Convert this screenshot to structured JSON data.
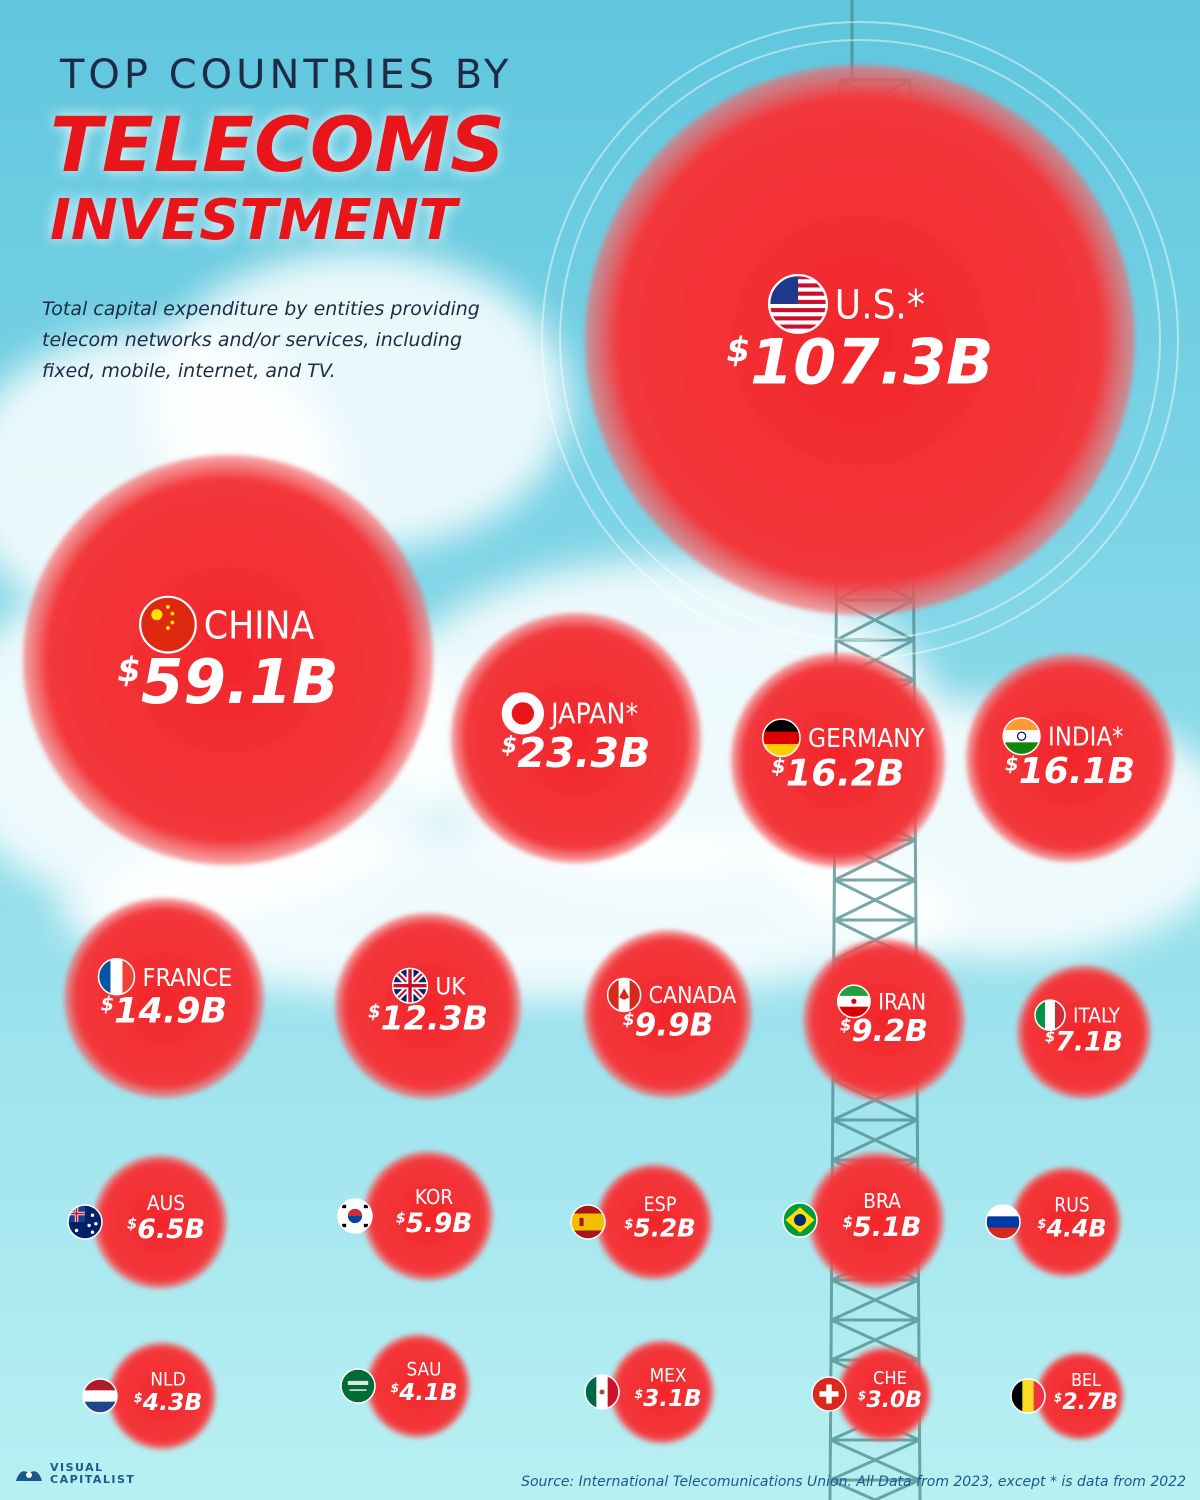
{
  "header": {
    "title_line1": "TOP COUNTRIES BY",
    "title_line2": "TELECOMS",
    "title_line3": "INVESTMENT",
    "subtitle": "Total capital expenditure by entities providing telecom networks and/or services, including fixed, mobile, internet, and TV."
  },
  "colors": {
    "bubble": "#f2262a",
    "bubble_edge": "#f56a6c",
    "title_red": "#e8161b"
  },
  "chart_data": {
    "type": "bubble",
    "unit": "$B",
    "items": [
      {
        "label": "U.S.*",
        "value": 107.3,
        "value_label": "107.3B",
        "flag": "us-flag-icon"
      },
      {
        "label": "CHINA",
        "value": 59.1,
        "value_label": "59.1B",
        "flag": "china-flag-icon"
      },
      {
        "label": "JAPAN*",
        "value": 23.3,
        "value_label": "23.3B",
        "flag": "japan-flag-icon"
      },
      {
        "label": "GERMANY",
        "value": 16.2,
        "value_label": "16.2B",
        "flag": "germany-flag-icon"
      },
      {
        "label": "INDIA*",
        "value": 16.1,
        "value_label": "16.1B",
        "flag": "india-flag-icon"
      },
      {
        "label": "FRANCE",
        "value": 14.9,
        "value_label": "14.9B",
        "flag": "france-flag-icon"
      },
      {
        "label": "UK",
        "value": 12.3,
        "value_label": "12.3B",
        "flag": "uk-flag-icon"
      },
      {
        "label": "CANADA",
        "value": 9.9,
        "value_label": "9.9B",
        "flag": "canada-flag-icon"
      },
      {
        "label": "IRAN",
        "value": 9.2,
        "value_label": "9.2B",
        "flag": "iran-flag-icon"
      },
      {
        "label": "ITALY",
        "value": 7.1,
        "value_label": "7.1B",
        "flag": "italy-flag-icon"
      },
      {
        "label": "AUS",
        "value": 6.5,
        "value_label": "6.5B",
        "flag": "australia-flag-icon"
      },
      {
        "label": "KOR",
        "value": 5.9,
        "value_label": "5.9B",
        "flag": "korea-flag-icon"
      },
      {
        "label": "ESP",
        "value": 5.2,
        "value_label": "5.2B",
        "flag": "spain-flag-icon"
      },
      {
        "label": "BRA",
        "value": 5.1,
        "value_label": "5.1B",
        "flag": "brazil-flag-icon"
      },
      {
        "label": "RUS",
        "value": 4.4,
        "value_label": "4.4B",
        "flag": "russia-flag-icon"
      },
      {
        "label": "NLD",
        "value": 4.3,
        "value_label": "4.3B",
        "flag": "netherlands-flag-icon"
      },
      {
        "label": "SAU",
        "value": 4.1,
        "value_label": "4.1B",
        "flag": "saudi-flag-icon"
      },
      {
        "label": "MEX",
        "value": 3.1,
        "value_label": "3.1B",
        "flag": "mexico-flag-icon"
      },
      {
        "label": "CHE",
        "value": 3.0,
        "value_label": "3.0B",
        "flag": "switzerland-flag-icon"
      },
      {
        "label": "BEL",
        "value": 2.7,
        "value_label": "2.7B",
        "flag": "belgium-flag-icon"
      }
    ]
  },
  "footer": {
    "source": "Source: International Telecomunications Union. All Data from 2023, except * is data from 2022",
    "logo_line1": "VISUAL",
    "logo_line2": "CAPITALIST"
  }
}
